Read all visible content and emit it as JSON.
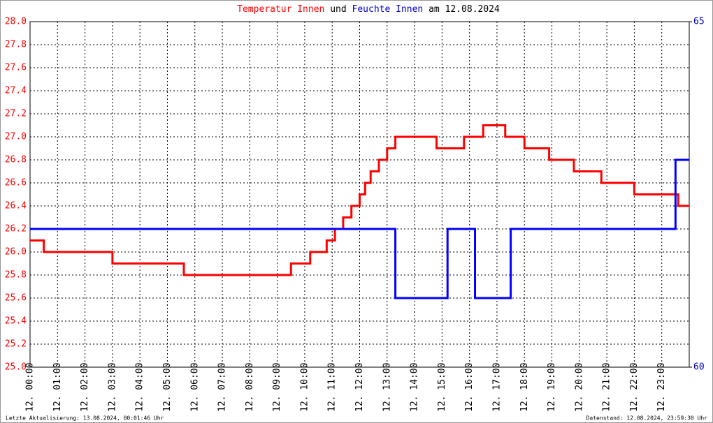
{
  "chart_data": {
    "type": "line",
    "title": [
      "und",
      "am 12.08.2024"
    ],
    "footer_left": "Letzte Aktualisierung: 13.08.2024, 00:01:46 Uhr",
    "footer_right": "Datenstand: 12.08.2024, 23:59:30 Uhr",
    "xlim": [
      0,
      24
    ],
    "xticks": [
      {
        "value": 0,
        "label": "12. 00:00"
      },
      {
        "value": 1,
        "label": "12. 01:00"
      },
      {
        "value": 2,
        "label": "12. 02:00"
      },
      {
        "value": 3,
        "label": "12. 03:00"
      },
      {
        "value": 4,
        "label": "12. 04:00"
      },
      {
        "value": 5,
        "label": "12. 05:00"
      },
      {
        "value": 6,
        "label": "12. 06:00"
      },
      {
        "value": 7,
        "label": "12. 07:00"
      },
      {
        "value": 8,
        "label": "12. 08:00"
      },
      {
        "value": 9,
        "label": "12. 09:00"
      },
      {
        "value": 10,
        "label": "12. 10:00"
      },
      {
        "value": 11,
        "label": "12. 11:00"
      },
      {
        "value": 12,
        "label": "12. 12:00"
      },
      {
        "value": 13,
        "label": "12. 13:00"
      },
      {
        "value": 14,
        "label": "12. 14:00"
      },
      {
        "value": 15,
        "label": "12. 15:00"
      },
      {
        "value": 16,
        "label": "12. 16:00"
      },
      {
        "value": 17,
        "label": "12. 17:00"
      },
      {
        "value": 18,
        "label": "12. 18:00"
      },
      {
        "value": 19,
        "label": "12. 19:00"
      },
      {
        "value": 20,
        "label": "12. 20:00"
      },
      {
        "value": 21,
        "label": "12. 21:00"
      },
      {
        "value": 22,
        "label": "12. 22:00"
      },
      {
        "value": 23,
        "label": "12. 23:00"
      }
    ],
    "ylim": [
      25,
      28
    ],
    "yticks": [
      {
        "value": 25,
        "label": "25.0"
      },
      25.2,
      25.4,
      25.6,
      25.8,
      {
        "value": 26,
        "label": "26.0"
      },
      26.2,
      26.4,
      26.6,
      26.8,
      {
        "value": 27,
        "label": "27.0"
      },
      27.2,
      27.4,
      27.6,
      27.8,
      {
        "value": 28,
        "label": "28.0"
      }
    ],
    "y2lim": [
      60,
      65
    ],
    "y2ticks": [
      60,
      65
    ],
    "grid": true,
    "series": [
      {
        "name": "Temperatur Innen",
        "color": "#ff0000",
        "axis": "y",
        "x": [
          0,
          0.5,
          0.5,
          3,
          3,
          5.6,
          5.6,
          9.5,
          9.5,
          10.2,
          10.2,
          10.8,
          10.8,
          11.1,
          11.1,
          11.4,
          11.4,
          11.7,
          11.7,
          12,
          12,
          12.2,
          12.2,
          12.4,
          12.4,
          12.7,
          12.7,
          13,
          13,
          13.3,
          13.3,
          14.8,
          14.8,
          15.8,
          15.8,
          16.5,
          16.5,
          17.3,
          17.3,
          18,
          18,
          18.9,
          18.9,
          19.8,
          19.8,
          20.8,
          20.8,
          22,
          22,
          23.6,
          23.6,
          24
        ],
        "values": [
          26.1,
          26.1,
          26,
          26,
          25.9,
          25.9,
          25.8,
          25.8,
          25.9,
          25.9,
          26,
          26,
          26.1,
          26.1,
          26.2,
          26.2,
          26.3,
          26.3,
          26.4,
          26.4,
          26.5,
          26.5,
          26.6,
          26.6,
          26.7,
          26.7,
          26.8,
          26.8,
          26.9,
          26.9,
          27,
          27,
          26.9,
          26.9,
          27,
          27,
          27.1,
          27.1,
          27,
          27,
          26.9,
          26.9,
          26.8,
          26.8,
          26.7,
          26.7,
          26.6,
          26.6,
          26.5,
          26.5,
          26.4,
          26.4
        ]
      },
      {
        "name": "Feuchte Innen",
        "color": "#0000ff",
        "axis": "y2",
        "x": [
          0,
          13.3,
          13.3,
          15.2,
          15.2,
          16.2,
          16.2,
          17.5,
          17.5,
          23.5,
          23.5,
          24
        ],
        "values": [
          62,
          62,
          61,
          61,
          62,
          62,
          61,
          61,
          62,
          62,
          63,
          63
        ]
      }
    ]
  }
}
